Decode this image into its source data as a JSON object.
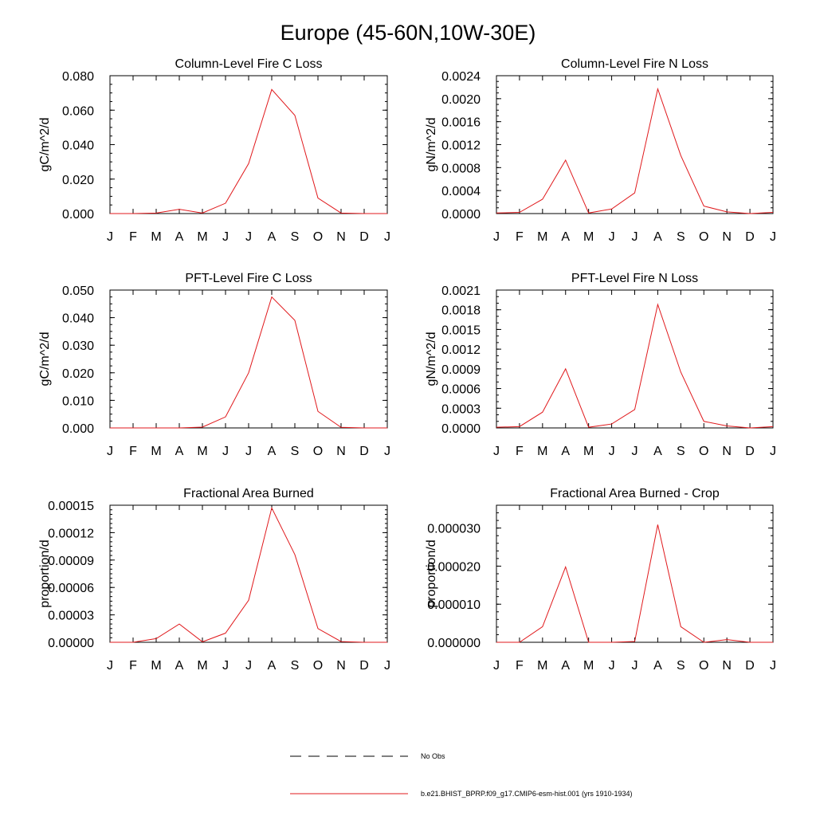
{
  "title": "Europe (45-60N,10W-30E)",
  "colors": {
    "model": "#e0191c",
    "obs": "#000000",
    "axis": "#000000"
  },
  "legend": {
    "obs_label": "No Obs",
    "model_label": "b.e21.BHIST_BPRP.f09_g17.CMIP6-esm-hist.001 (yrs 1910-1934)"
  },
  "months": [
    "J",
    "F",
    "M",
    "A",
    "M",
    "J",
    "J",
    "A",
    "S",
    "O",
    "N",
    "D",
    "J"
  ],
  "chart_data": [
    {
      "type": "line",
      "title": "Column-Level Fire C Loss",
      "ylabel": "gC/m^2/d",
      "ylim": [
        0,
        0.08
      ],
      "yticks": [
        0,
        0.02,
        0.04,
        0.06,
        0.08
      ],
      "ytick_labels": [
        "0.000",
        "0.020",
        "0.040",
        "0.060",
        "0.080"
      ],
      "minor_step": 0.005,
      "series": [
        {
          "name": "model",
          "values": [
            0.0,
            0.0,
            0.0003,
            0.0025,
            0.0003,
            0.006,
            0.029,
            0.072,
            0.057,
            0.009,
            0.0003,
            0.0,
            0.0
          ]
        }
      ]
    },
    {
      "type": "line",
      "title": "Column-Level Fire N Loss",
      "ylabel": "gN/m^2/d",
      "ylim": [
        0,
        0.0024
      ],
      "yticks": [
        0,
        0.0004,
        0.0008,
        0.0012,
        0.0016,
        0.002,
        0.0024
      ],
      "ytick_labels": [
        "0.0000",
        "0.0004",
        "0.0008",
        "0.0012",
        "0.0016",
        "0.0020",
        "0.0024"
      ],
      "minor_step": 0.0001,
      "series": [
        {
          "name": "model",
          "values": [
            1e-05,
            2e-05,
            0.00025,
            0.00093,
            1e-05,
            8e-05,
            0.00036,
            0.00217,
            0.00101,
            0.00013,
            3e-05,
            0.0,
            2e-05
          ]
        }
      ]
    },
    {
      "type": "line",
      "title": "PFT-Level Fire C Loss",
      "ylabel": "gC/m^2/d",
      "ylim": [
        0,
        0.05
      ],
      "yticks": [
        0,
        0.01,
        0.02,
        0.03,
        0.04,
        0.05
      ],
      "ytick_labels": [
        "0.000",
        "0.010",
        "0.020",
        "0.030",
        "0.040",
        "0.050"
      ],
      "minor_step": 0.0025,
      "series": [
        {
          "name": "model",
          "values": [
            0.0,
            0.0,
            0.0,
            0.0,
            0.0003,
            0.004,
            0.02,
            0.0475,
            0.039,
            0.006,
            0.0002,
            0.0,
            0.0
          ]
        }
      ]
    },
    {
      "type": "line",
      "title": "PFT-Level Fire N Loss",
      "ylabel": "gN/m^2/d",
      "ylim": [
        0,
        0.0021
      ],
      "yticks": [
        0,
        0.0003,
        0.0006,
        0.0009,
        0.0012,
        0.0015,
        0.0018,
        0.0021
      ],
      "ytick_labels": [
        "0.0000",
        "0.0003",
        "0.0006",
        "0.0009",
        "0.0012",
        "0.0015",
        "0.0018",
        "0.0021"
      ],
      "minor_step": 0.0001,
      "series": [
        {
          "name": "model",
          "values": [
            1e-05,
            2e-05,
            0.00024,
            0.0009,
            1e-05,
            6e-05,
            0.00028,
            0.00188,
            0.00085,
            0.0001,
            3e-05,
            0.0,
            2e-05
          ]
        }
      ]
    },
    {
      "type": "line",
      "title": "Fractional Area Burned",
      "ylabel": "proportion/d",
      "ylim": [
        0,
        0.00015
      ],
      "yticks": [
        0,
        3e-05,
        6e-05,
        9e-05,
        0.00012,
        0.00015
      ],
      "ytick_labels": [
        "0.00000",
        "0.00003",
        "0.00006",
        "0.00009",
        "0.00012",
        "0.00015"
      ],
      "minor_step": 5e-06,
      "series": [
        {
          "name": "model",
          "values": [
            0.0,
            0.0,
            4e-06,
            2e-05,
            5e-07,
            1e-05,
            4.6e-05,
            0.000147,
            9.6e-05,
            1.5e-05,
            8e-07,
            0.0,
            0.0
          ]
        }
      ]
    },
    {
      "type": "line",
      "title": "Fractional Area Burned - Crop",
      "ylabel": "proportion/d",
      "ylim": [
        0,
        3.6e-05
      ],
      "yticks": [
        0,
        1e-05,
        2e-05,
        3e-05
      ],
      "ytick_labels": [
        "0.000000",
        "0.000010",
        "0.000020",
        "0.000030"
      ],
      "minor_step": 2e-06,
      "series": [
        {
          "name": "model",
          "values": [
            0.0,
            0.0,
            4.1e-06,
            1.98e-05,
            0.0,
            0.0,
            2e-07,
            3.09e-05,
            4.1e-06,
            0.0,
            7e-07,
            0.0,
            0.0
          ]
        }
      ]
    }
  ]
}
